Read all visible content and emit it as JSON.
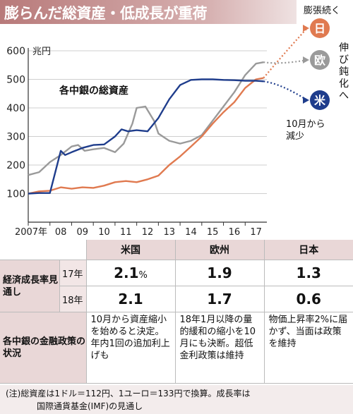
{
  "title": "膨らんだ総資産・低成長が重荷",
  "chart_data": {
    "type": "line",
    "ylabel": "兆円",
    "yticks": [
      100,
      200,
      300,
      400,
      500,
      600
    ],
    "ylim": [
      0,
      600
    ],
    "xlim": [
      2007,
      2018
    ],
    "xticks": [
      "2007年",
      "08",
      "09",
      "10",
      "11",
      "12",
      "13",
      "14",
      "15",
      "16",
      "17"
    ],
    "annotation": "各中銀の総資産",
    "series": [
      {
        "name": "日",
        "color": "#e07a50",
        "x": [
          2007,
          2007.5,
          2008,
          2008.5,
          2009,
          2009.5,
          2010,
          2010.5,
          2011,
          2011.5,
          2012,
          2012.5,
          2013,
          2013.5,
          2014,
          2014.5,
          2015,
          2015.5,
          2016,
          2016.5,
          2017,
          2017.5,
          2017.85
        ],
        "y": [
          100,
          108,
          110,
          122,
          117,
          122,
          120,
          128,
          140,
          144,
          140,
          150,
          163,
          200,
          230,
          265,
          300,
          345,
          385,
          420,
          470,
          500,
          505
        ],
        "forecast_y": 565,
        "forecast_label": "膨張続く"
      },
      {
        "name": "欧",
        "color": "#9a9a9a",
        "x": [
          2007,
          2007.5,
          2008,
          2008.5,
          2009,
          2009.3,
          2009.6,
          2010,
          2010.5,
          2011,
          2011.4,
          2011.8,
          2012,
          2012.4,
          2012.8,
          2013,
          2013.5,
          2014,
          2014.5,
          2015,
          2015.5,
          2016,
          2016.5,
          2017,
          2017.5,
          2017.85
        ],
        "y": [
          165,
          175,
          210,
          235,
          265,
          270,
          250,
          255,
          260,
          245,
          275,
          345,
          400,
          405,
          355,
          310,
          285,
          275,
          285,
          305,
          355,
          405,
          455,
          515,
          555,
          560
        ],
        "forecast_y": 535,
        "forecast_label": "伸び鈍化へ"
      },
      {
        "name": "米",
        "color": "#1f3d8c",
        "x": [
          2007,
          2007.5,
          2008,
          2008.5,
          2008.7,
          2009,
          2009.5,
          2010,
          2010.5,
          2011,
          2011.3,
          2011.6,
          2012,
          2012.5,
          2013,
          2013.5,
          2014,
          2014.5,
          2015,
          2015.5,
          2016,
          2016.5,
          2017,
          2017.5,
          2017.85
        ],
        "y": [
          100,
          102,
          102,
          250,
          235,
          245,
          260,
          270,
          272,
          300,
          325,
          318,
          322,
          318,
          365,
          430,
          480,
          498,
          500,
          500,
          498,
          497,
          495,
          495,
          493
        ],
        "forecast_y": 445,
        "forecast_label": "10月から減少"
      }
    ]
  },
  "table": {
    "header": [
      "米国",
      "欧州",
      "日本"
    ],
    "growth_label": "経済成長率見通し",
    "rows": [
      {
        "year": "17年",
        "values": [
          "2.1",
          "1.9",
          "1.3"
        ],
        "unit": "%"
      },
      {
        "year": "18年",
        "values": [
          "2.1",
          "1.7",
          "0.6"
        ]
      }
    ],
    "policy_label": "各中銀の金融政策の状況",
    "policy": [
      "10月から資産縮小を始めると決定。年内1回の追加利上げも",
      "18年1月以降の量的緩和の縮小を10月にも決断。超低金利政策は維持",
      "物価上昇率2%に届かず、当面は政策を維持"
    ]
  },
  "note": {
    "line1": "(注)総資産は1ドル＝112円、1ユーロ＝133円で換算。成長率は",
    "line2": "国際通貨基金(IMF)の見通し"
  }
}
